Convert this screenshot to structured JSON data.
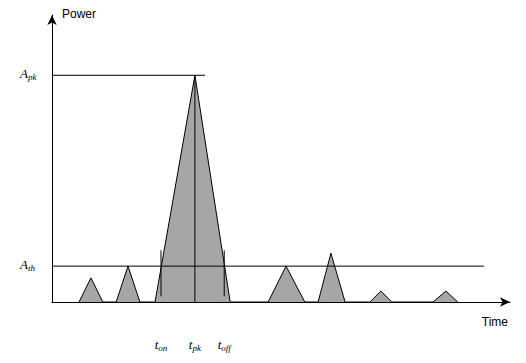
{
  "chart_data": {
    "type": "line",
    "x_label": "Time",
    "y_label": "Power",
    "x": [
      5.9,
      8.5,
      11.1,
      14.0,
      16.6,
      19.2,
      22.5,
      31.2,
      38.9,
      47.2,
      51.1,
      55.2,
      58.1,
      60.9,
      64.0,
      69.4,
      71.8,
      74.2,
      83.2,
      86.0,
      88.6
    ],
    "values": [
      0,
      8.4,
      0,
      0,
      12.5,
      0,
      0,
      79,
      0,
      0,
      12.5,
      0,
      0,
      17,
      0,
      0,
      3.8,
      0,
      0,
      3.8,
      0
    ],
    "color": "#a6a6a6",
    "xlim": [
      0,
      100
    ],
    "ylim": [
      0,
      100
    ],
    "tick_labels": false,
    "grid": false,
    "levels": [
      {
        "base": "A",
        "sub": "pk",
        "value": 79,
        "x_end": 33.4
      },
      {
        "base": "A",
        "sub": "th",
        "value": 12.5,
        "x_end": 94.3
      }
    ],
    "times": [
      {
        "base": "t",
        "sub": "on",
        "value": 23.8,
        "y_from": 2,
        "y_to": 18
      },
      {
        "base": "t",
        "sub": "pk",
        "value": 31.2,
        "y_from": 0,
        "y_to": 79
      },
      {
        "base": "t",
        "sub": "off",
        "value": 37.6,
        "y_from": 2,
        "y_to": 18
      }
    ]
  }
}
